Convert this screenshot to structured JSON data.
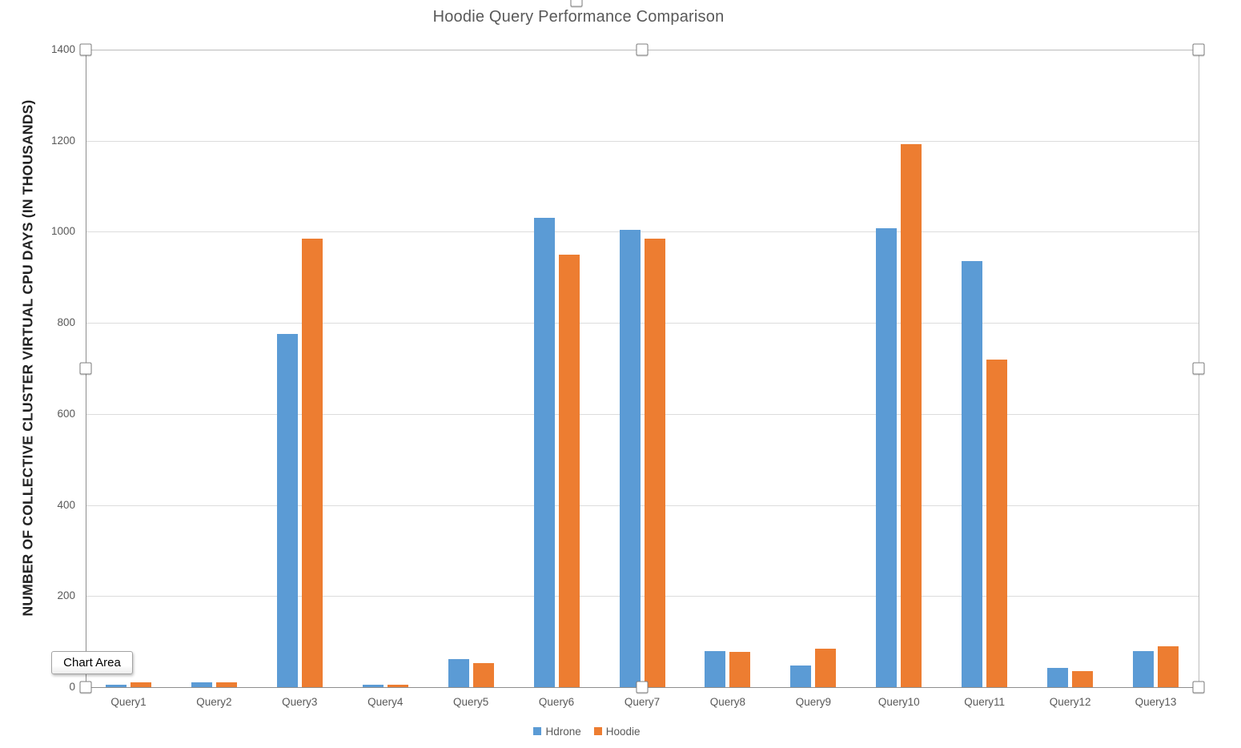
{
  "chart_data": {
    "type": "bar",
    "title": "Hoodie Query Performance Comparison",
    "ylabel": "NUMBER OF COLLECTIVE CLUSTER VIRTUAL CPU DAYS (IN THOUSANDS)",
    "xlabel": "",
    "categories": [
      "Query1",
      "Query2",
      "Query3",
      "Query4",
      "Query5",
      "Query6",
      "Query7",
      "Query8",
      "Query9",
      "Query10",
      "Query11",
      "Query12",
      "Query13"
    ],
    "series": [
      {
        "name": "Hdrone",
        "color": "#5B9BD5",
        "values": [
          5,
          10,
          775,
          5,
          62,
          1030,
          1005,
          80,
          47,
          1008,
          935,
          42,
          80
        ]
      },
      {
        "name": "Hoodie",
        "color": "#ED7D31",
        "values": [
          10,
          10,
          985,
          5,
          52,
          950,
          985,
          78,
          85,
          1192,
          720,
          35,
          90
        ]
      }
    ],
    "ylim": [
      0,
      1400
    ],
    "yticks": [
      0,
      200,
      400,
      600,
      800,
      1000,
      1200,
      1400
    ],
    "grid": true,
    "legend_position": "bottom"
  },
  "overlay": {
    "tooltip_label": "Chart Area",
    "selection_handle_count": 9
  },
  "colors": {
    "title_text": "#595959",
    "tick_text": "#595959",
    "axis_line": "#8e8e8e",
    "gridline": "#dcdcdc",
    "plot_border": "#bcbcbc",
    "hdrone_blue": "#5B9BD5",
    "hoodie_orange": "#ED7D31"
  }
}
